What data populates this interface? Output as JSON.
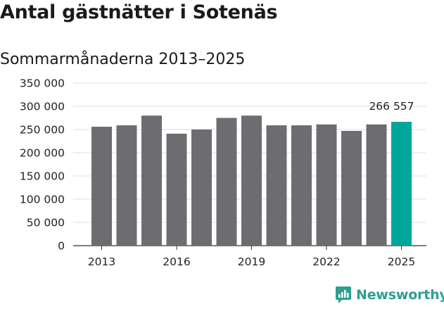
{
  "title": "Antal gästnätter i Sotenäs",
  "subtitle": "Sommarmånaderna 2013–2025",
  "brand": {
    "name": "Newsworthy",
    "color": "#2e9f8f",
    "icon": "newsworthy-logo-icon"
  },
  "colors": {
    "bar": "#6d6c71",
    "highlight": "#00a59b",
    "grid": "#dddddd"
  },
  "chart_data": {
    "type": "bar",
    "title": "Antal gästnätter i Sotenäs",
    "subtitle": "Sommarmånaderna 2013–2025",
    "xlabel": "",
    "ylabel": "",
    "categories": [
      "2013",
      "2014",
      "2015",
      "2016",
      "2017",
      "2018",
      "2019",
      "2020",
      "2021",
      "2022",
      "2023",
      "2024",
      "2025"
    ],
    "values": [
      256000,
      259000,
      280000,
      241000,
      250000,
      275000,
      280000,
      259000,
      259000,
      261000,
      247000,
      261000,
      266557
    ],
    "ylim": [
      0,
      350000
    ],
    "yticks": [
      0,
      50000,
      100000,
      150000,
      200000,
      250000,
      300000,
      350000
    ],
    "ytick_labels": [
      "0",
      "50 000",
      "100 000",
      "150 000",
      "200 000",
      "250 000",
      "300 000",
      "350 000"
    ],
    "xtick_labels": [
      "2013",
      "2016",
      "2019",
      "2022",
      "2025"
    ],
    "highlight_index": 12,
    "data_labels": [
      {
        "index": 12,
        "text": "266 557"
      }
    ],
    "grid": true,
    "legend": "none"
  }
}
